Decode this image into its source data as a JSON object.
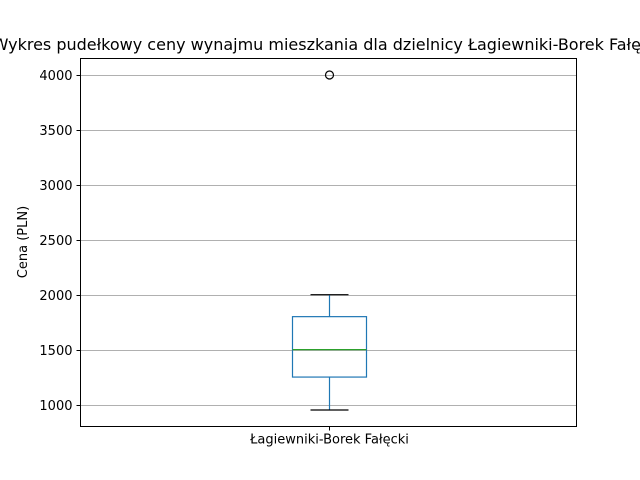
{
  "chart_data": {
    "type": "box",
    "title": "Wykres pudełkowy ceny wynajmu mieszkania dla dzielnicy  Łagiewniki-Borek Fałęcki",
    "xlabel": "",
    "ylabel": "Cena (PLN)",
    "categories": [
      "Łagiewniki-Borek Fałęcki"
    ],
    "ylim": [
      800,
      4150
    ],
    "yticks": [
      1000,
      1500,
      2000,
      2500,
      3000,
      3500,
      4000
    ],
    "grid": "y",
    "boxes": [
      {
        "category": "Łagiewniki-Borek Fałęcki",
        "whisker_low": 950,
        "q1": 1250,
        "median": 1500,
        "q3": 1800,
        "whisker_high": 2000,
        "outliers": [
          4000
        ]
      }
    ],
    "colors": {
      "box": "#1f77b4",
      "median": "#2ca02c",
      "whisker": "#1f77b4",
      "cap": "#000000",
      "grid": "#b0b0b0",
      "flier": "#000000"
    }
  }
}
